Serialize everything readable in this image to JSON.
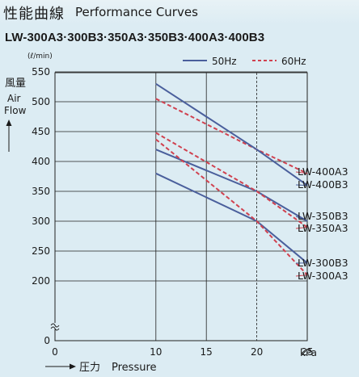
{
  "header": {
    "title_jp": "性能曲線",
    "title_en": "Performance Curves"
  },
  "models_line": "LW-300A3·300B3·350A3·350B3·400A3·400B3",
  "legend": {
    "series_50": "50Hz",
    "series_60": "60Hz"
  },
  "colors": {
    "hz50": "#4a5f9c",
    "hz60": "#d0414f",
    "background": "#dcecf3"
  },
  "chart_data": {
    "type": "line",
    "unit_label": "(ℓ/min)",
    "ylabel_jp": "風量",
    "ylabel_en_1": "Air",
    "ylabel_en_2": "Flow",
    "xlabel_jp": "圧力",
    "xlabel_en": "Pressure",
    "xunit": "kPa",
    "y_axis_break": true,
    "xlim": [
      0,
      25
    ],
    "ylim": [
      0,
      550
    ],
    "x_ticks": [
      0,
      10,
      15,
      20,
      25
    ],
    "y_ticks": [
      0,
      200,
      250,
      300,
      350,
      400,
      450,
      500,
      550
    ],
    "grid": true,
    "legend_position": "top",
    "series": [
      {
        "name": "LW-400A3",
        "frequency": "60Hz",
        "x": [
          10,
          20,
          25
        ],
        "y": [
          505,
          420,
          380
        ]
      },
      {
        "name": "LW-400B3",
        "frequency": "50Hz",
        "x": [
          10,
          20,
          25
        ],
        "y": [
          530,
          420,
          360
        ]
      },
      {
        "name": "LW-350B3",
        "frequency": "50Hz",
        "x": [
          10,
          20,
          25
        ],
        "y": [
          420,
          350,
          300
        ]
      },
      {
        "name": "LW-350A3",
        "frequency": "60Hz",
        "x": [
          10,
          20,
          25
        ],
        "y": [
          448,
          350,
          290
        ]
      },
      {
        "name": "LW-300B3",
        "frequency": "50Hz",
        "x": [
          10,
          20,
          25
        ],
        "y": [
          380,
          300,
          230
        ]
      },
      {
        "name": "LW-300A3",
        "frequency": "60Hz",
        "x": [
          10,
          20,
          25
        ],
        "y": [
          437,
          300,
          210
        ]
      }
    ],
    "series_labels": [
      "LW-400A3",
      "LW-400B3",
      "LW-350B3",
      "LW-350A3",
      "LW-300B3",
      "LW-300A3"
    ]
  }
}
